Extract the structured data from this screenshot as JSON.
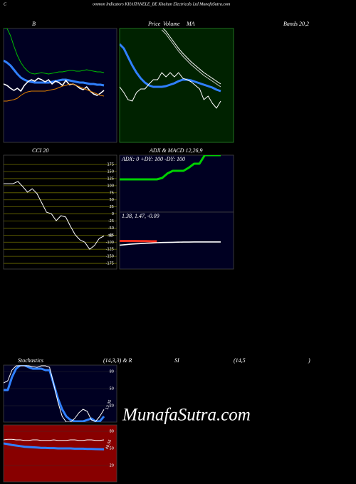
{
  "header": {
    "initial": "C",
    "title": "ommon  Indicators KHAITANELE_BE Khaitan  Electricals Ltd MunafaSutra.com"
  },
  "labels": [
    "Volume",
    "MA",
    "Bands 20,2",
    "(14,3,3) & R",
    "SI",
    "(14,5",
    ")"
  ],
  "watermark": "MunafaSutra.com",
  "chart_data": [
    {
      "type": "line",
      "title": "B",
      "background": "#000022",
      "ylim": [
        0,
        160
      ],
      "series": [
        {
          "color": "#00c000",
          "style": "thin",
          "values": [
            160,
            160,
            150,
            135,
            122,
            112,
            105,
            100,
            97,
            96,
            97,
            98,
            97,
            96,
            97,
            98,
            99,
            99,
            100,
            101,
            101,
            100,
            100,
            101,
            102,
            101,
            100,
            99,
            99,
            98
          ]
        },
        {
          "color": "#3080ff",
          "style": "thick",
          "values": [
            115,
            112,
            108,
            102,
            96,
            91,
            88,
            86,
            85,
            84,
            84,
            84,
            84,
            84,
            85,
            86,
            87,
            88,
            88,
            87,
            86,
            85,
            84,
            84,
            83,
            82,
            82,
            81,
            81,
            80
          ]
        },
        {
          "color": "#ffffff",
          "style": "medium",
          "values": [
            82,
            80,
            76,
            73,
            76,
            72,
            80,
            85,
            88,
            86,
            90,
            88,
            85,
            88,
            82,
            86,
            84,
            80,
            87,
            81,
            82,
            80,
            76,
            74,
            78,
            72,
            68,
            66,
            69,
            73
          ]
        },
        {
          "color": "#e08000",
          "style": "thin",
          "values": [
            58,
            58,
            59,
            60,
            62,
            66,
            69,
            71,
            72,
            72,
            72,
            72,
            72,
            73,
            74,
            75,
            77,
            79,
            80,
            82,
            82,
            80,
            78,
            76,
            74,
            72,
            70,
            68,
            66,
            65
          ]
        }
      ]
    },
    {
      "type": "line",
      "title": "Price",
      "background": "#002200",
      "ylim": [
        0,
        160
      ],
      "series": [
        {
          "color": "#3080ff",
          "style": "thick",
          "values": [
            138,
            132,
            120,
            108,
            98,
            90,
            84,
            80,
            78,
            78,
            78,
            79,
            81,
            83,
            86,
            88,
            88,
            87,
            85,
            83,
            81,
            79,
            77,
            74,
            72
          ]
        },
        {
          "color": "#ffffff",
          "style": "thin",
          "values": [
            78,
            70,
            60,
            58,
            70,
            75,
            75,
            82,
            88,
            88,
            98,
            92,
            98,
            92,
            98,
            90,
            88,
            85,
            80,
            75,
            60,
            65,
            55,
            48,
            58
          ]
        },
        {
          "color": "#ffffff",
          "style": "thin",
          "values": [
            null,
            null,
            null,
            null,
            null,
            null,
            null,
            null,
            null,
            null,
            162,
            156,
            148,
            140,
            132,
            125,
            119,
            113,
            108,
            103,
            98,
            94,
            90,
            86,
            82
          ]
        },
        {
          "color": "#cccccc",
          "style": "thin",
          "values": [
            null,
            null,
            null,
            null,
            null,
            null,
            null,
            null,
            null,
            null,
            158,
            152,
            144,
            136,
            128,
            121,
            115,
            109,
            104,
            99,
            94,
            90,
            86,
            82,
            78
          ]
        }
      ]
    },
    {
      "type": "line",
      "title": "CCI 20",
      "background": "#000000",
      "grid_color": "#6b6b00",
      "ylim": [
        -195,
        208
      ],
      "yticks": [
        175,
        150,
        125,
        100,
        75,
        50,
        25,
        0,
        -25,
        -50,
        -75,
        -100,
        -125,
        -150,
        -175
      ],
      "value_label": "-78",
      "series": [
        {
          "color": "#ffffff",
          "style": "thin",
          "values": [
            107,
            107,
            107,
            115,
            97,
            77,
            89,
            72,
            39,
            6,
            1,
            -24,
            -6,
            -11,
            -44,
            -74,
            -92,
            -100,
            -125,
            -112,
            -87,
            -78
          ]
        }
      ]
    },
    {
      "type": "line",
      "title": "ADX  & MACD 12,26,9",
      "background": "#000022",
      "ylim": [
        0,
        100
      ],
      "annotation": "ADX: 0  +DY: 100  -DY: 100",
      "series": [
        {
          "color": "#00d000",
          "style": "thick",
          "values": [
            57.5,
            57.5,
            57.5,
            57.5,
            57.5,
            57.5,
            57.5,
            57.5,
            60,
            68,
            72.5,
            72.5,
            72.5,
            78,
            85,
            85,
            100,
            100,
            100,
            100
          ]
        }
      ]
    },
    {
      "type": "line",
      "background": "#000022",
      "ylim": [
        -1,
        4
      ],
      "annotation": "1.38,  1.47,  -0.09",
      "series": [
        {
          "color": "#ff3020",
          "style": "thick",
          "values": [
            1.47,
            1.47,
            1.46,
            1.46,
            1.45,
            1.45,
            1.44,
            1.44,
            null,
            null,
            null,
            null,
            null,
            null,
            null,
            null,
            null,
            null,
            null,
            null
          ]
        },
        {
          "color": "#ffffff",
          "style": "medium",
          "values": [
            1.1,
            1.14,
            1.18,
            1.21,
            1.24,
            1.27,
            1.29,
            1.31,
            1.33,
            1.34,
            1.35,
            1.36,
            1.37,
            1.37,
            1.38,
            1.38,
            1.38,
            1.38,
            1.38,
            1.38
          ]
        }
      ]
    },
    {
      "type": "line",
      "title": "Stochastics",
      "background": "#000022",
      "ylim": [
        -8.75,
        91.25
      ],
      "yticks": [
        80,
        50,
        20
      ],
      "value_label": "13.35",
      "series": [
        {
          "color": "#3080ff",
          "style": "thick",
          "values": [
            47.5,
            47.5,
            70,
            85,
            91.25,
            91.25,
            87.5,
            85,
            85,
            85,
            82.5,
            82.5,
            57.5,
            32.5,
            13.75,
            1.25,
            -5,
            -7.5,
            -7.5,
            -7.5,
            -5,
            -2.5,
            -7.5,
            -7.5,
            1.25
          ]
        },
        {
          "color": "#ffffff",
          "style": "thin",
          "values": [
            60,
            63.75,
            82.5,
            90,
            90,
            90,
            90,
            88.75,
            87.5,
            90,
            90,
            87.5,
            57.5,
            26.25,
            1.25,
            -8.75,
            -8.75,
            -2.5,
            7.5,
            13.75,
            10,
            -5,
            -7.5,
            1.25,
            13.35
          ]
        }
      ]
    },
    {
      "type": "line",
      "background": "#880000",
      "ylim": [
        -8.75,
        91.25
      ],
      "yticks": [
        80,
        50,
        20
      ],
      "value_label": "48.56",
      "series": [
        {
          "color": "#ffffff",
          "style": "thin",
          "values": [
            65,
            66,
            66,
            65,
            65,
            64,
            64,
            65,
            65,
            64,
            64,
            64,
            65,
            64,
            64,
            64,
            65,
            65,
            64,
            64,
            65,
            65,
            64,
            64,
            65
          ]
        },
        {
          "color": "#3080ff",
          "style": "thick",
          "values": [
            58.75,
            57.5,
            56,
            55,
            54,
            53,
            52.5,
            52,
            51.5,
            51,
            51,
            50.5,
            50.5,
            50,
            50,
            50,
            50,
            49.5,
            49.5,
            49.5,
            49,
            49,
            48.8,
            48.6,
            48.56
          ]
        }
      ]
    }
  ]
}
